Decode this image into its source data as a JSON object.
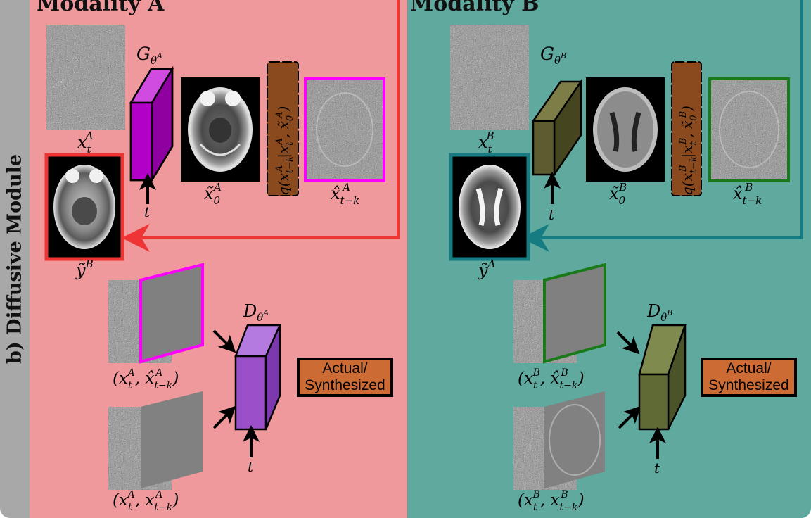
{
  "sidebar_title": "b) Diffusive Module",
  "modality_a": {
    "title": "Modality A",
    "generator": {
      "letter": "G",
      "sub": "θ",
      "sup": "A"
    },
    "noisy_input": {
      "base": "x",
      "sub": "t",
      "sup": "A"
    },
    "denoised": {
      "base": "x̃",
      "sub": "0",
      "sup": "A"
    },
    "posterior": {
      "prefix": "q(x",
      "sub1": "t−k",
      "sup1": "A",
      "mid": "|x",
      "sub2": "t",
      "sup2": "A",
      "mid2": ", x̃",
      "sub3": "0",
      "sup3": "A",
      "suffix": ")"
    },
    "prediction": {
      "base": "x̂",
      "sub": "t−k",
      "sup": "A"
    },
    "source_image": {
      "base": "ỹ",
      "sup": "B"
    },
    "time_label": "t",
    "discriminator": {
      "letter": "D",
      "sub": "θ",
      "sup": "A"
    },
    "pair_fake": "(x, x̂)",
    "pair_real": "(x, x)",
    "pair_fake_parts": {
      "a": "x",
      "a_sub": "t",
      "a_sup": "A",
      "b": "x̂",
      "b_sub": "t−k",
      "b_sup": "A"
    },
    "pair_real_parts": {
      "a": "x",
      "a_sub": "t",
      "a_sup": "A",
      "b": "x",
      "b_sub": "t−k",
      "b_sup": "A"
    },
    "decision_line1": "Actual/",
    "decision_line2": "Synthesized"
  },
  "modality_b": {
    "title": "Modality B",
    "generator": {
      "letter": "G",
      "sub": "θ",
      "sup": "B"
    },
    "noisy_input": {
      "base": "x",
      "sub": "t",
      "sup": "B"
    },
    "denoised": {
      "base": "x̃",
      "sub": "0",
      "sup": "B"
    },
    "posterior": {
      "prefix": "q(x",
      "sub1": "t−k",
      "sup1": "B",
      "mid": "|x",
      "sub2": "t",
      "sup2": "B",
      "mid2": ", x̃",
      "sub3": "0",
      "sup3": "B",
      "suffix": ")"
    },
    "prediction": {
      "base": "x̂",
      "sub": "t−k",
      "sup": "B"
    },
    "source_image": {
      "base": "ỹ",
      "sup": "A"
    },
    "time_label": "t",
    "discriminator": {
      "letter": "D",
      "sub": "θ",
      "sup": "B"
    },
    "pair_fake_parts": {
      "a": "x",
      "a_sub": "t",
      "a_sup": "B",
      "b": "x̂",
      "b_sub": "t−k",
      "b_sup": "B"
    },
    "pair_real_parts": {
      "a": "x",
      "a_sub": "t",
      "a_sup": "B",
      "b": "x",
      "b_sub": "t−k",
      "b_sup": "B"
    },
    "decision_line1": "Actual/",
    "decision_line2": "Synthesized"
  },
  "colors": {
    "panel_a_bg": "#f0999c",
    "panel_b_bg": "#5fa99f",
    "sidebar_bg": "#a8a8a8",
    "generator_a": "#b200c8",
    "generator_b": "#5c5c30",
    "discriminator_a": "#9b4fc9",
    "discriminator_b": "#5f6a35",
    "posterior_box": "#8a4a1e",
    "decision_box": "#cd6b35",
    "arrow_a": "#ee3434",
    "arrow_b": "#167c82",
    "prediction_frame_a": "#ff00ff",
    "prediction_frame_b": "#1a7a1a",
    "source_frame_a": "#ee3434",
    "source_frame_b": "#167c82"
  }
}
